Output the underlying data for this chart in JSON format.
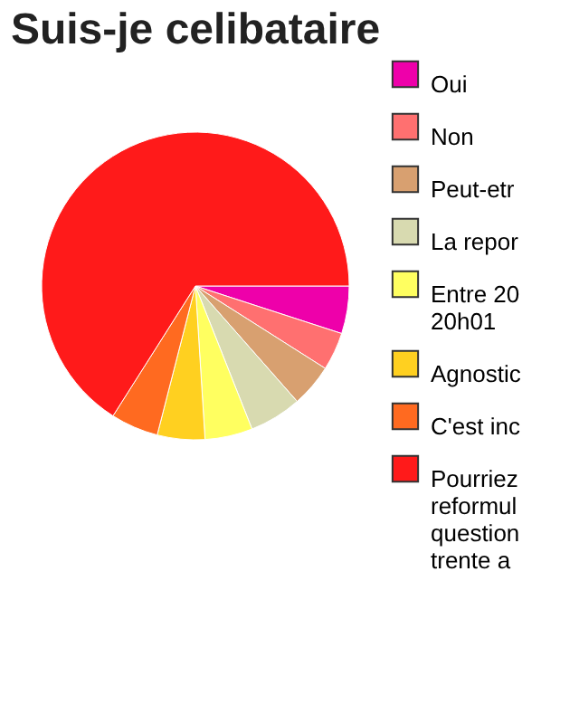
{
  "chart_data": {
    "type": "pie",
    "title": "Suis-je celibataire",
    "categories": [
      "Oui",
      "Non",
      "Peut-etr",
      "La repor",
      "Entre 20\n20h01",
      "Agnostic",
      "C'est inc",
      "Pourriez\nreformul\nquestion\ntrente a"
    ],
    "values": [
      5,
      4,
      4.5,
      5.5,
      5,
      5,
      5,
      66
    ],
    "colors": [
      "#ee00aa",
      "#ff7070",
      "#d8a070",
      "#d8dab0",
      "#ffff60",
      "#ffd020",
      "#ff6a20",
      "#ff1a1a"
    ],
    "legend": "right"
  }
}
